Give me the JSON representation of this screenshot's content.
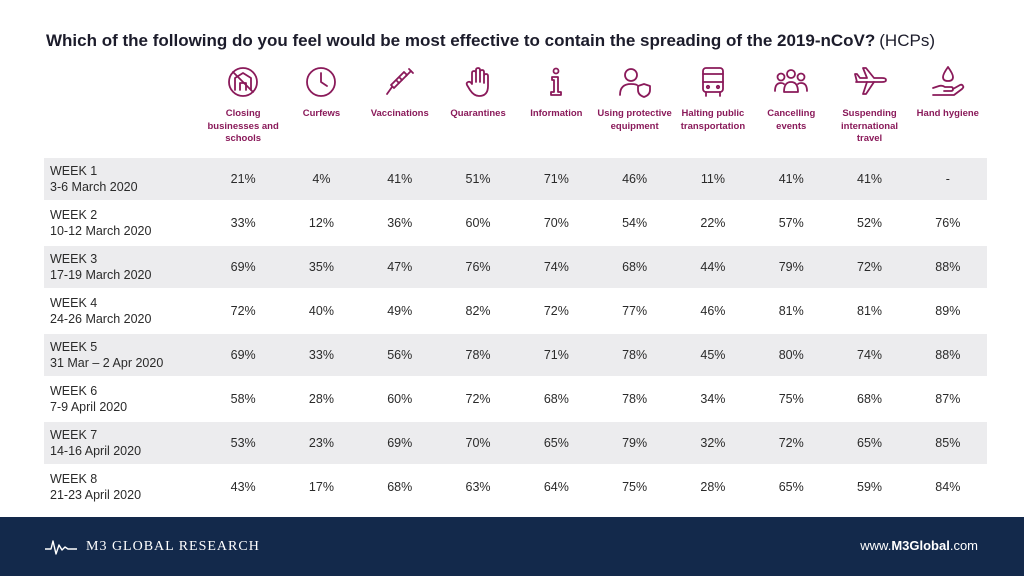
{
  "title": {
    "main": "Which of the following do you feel would be most effective to contain the spreading of the 2019-nCoV?",
    "sub": "(HCPs)"
  },
  "columns": [
    {
      "label": "Closing businesses and schools",
      "icon": "closed-building-icon"
    },
    {
      "label": "Curfews",
      "icon": "clock-icon"
    },
    {
      "label": "Vaccinations",
      "icon": "syringe-icon"
    },
    {
      "label": "Quarantines",
      "icon": "hand-stop-icon"
    },
    {
      "label": "Information",
      "icon": "info-icon"
    },
    {
      "label": "Using protective equipment",
      "icon": "person-shield-icon"
    },
    {
      "label": "Halting public transportation",
      "icon": "bus-icon"
    },
    {
      "label": "Cancelling events",
      "icon": "group-icon"
    },
    {
      "label": "Suspending international travel",
      "icon": "airplane-icon"
    },
    {
      "label": "Hand hygiene",
      "icon": "hand-drop-icon"
    }
  ],
  "rows": [
    {
      "week": "WEEK 1",
      "dates": "3-6 March 2020",
      "values": [
        "21%",
        "4%",
        "41%",
        "51%",
        "71%",
        "46%",
        "11%",
        "41%",
        "41%",
        "-"
      ]
    },
    {
      "week": "WEEK 2",
      "dates": "10-12 March 2020",
      "values": [
        "33%",
        "12%",
        "36%",
        "60%",
        "70%",
        "54%",
        "22%",
        "57%",
        "52%",
        "76%"
      ]
    },
    {
      "week": "WEEK 3",
      "dates": "17-19 March 2020",
      "values": [
        "69%",
        "35%",
        "47%",
        "76%",
        "74%",
        "68%",
        "44%",
        "79%",
        "72%",
        "88%"
      ]
    },
    {
      "week": "WEEK 4",
      "dates": "24-26 March 2020",
      "values": [
        "72%",
        "40%",
        "49%",
        "82%",
        "72%",
        "77%",
        "46%",
        "81%",
        "81%",
        "89%"
      ]
    },
    {
      "week": "WEEK 5",
      "dates": "31 Mar – 2 Apr 2020",
      "values": [
        "69%",
        "33%",
        "56%",
        "78%",
        "71%",
        "78%",
        "45%",
        "80%",
        "74%",
        "88%"
      ]
    },
    {
      "week": "WEEK 6",
      "dates": "7-9 April 2020",
      "values": [
        "58%",
        "28%",
        "60%",
        "72%",
        "68%",
        "78%",
        "34%",
        "75%",
        "68%",
        "87%"
      ]
    },
    {
      "week": "WEEK 7",
      "dates": "14-16 April 2020",
      "values": [
        "53%",
        "23%",
        "69%",
        "70%",
        "65%",
        "79%",
        "32%",
        "72%",
        "65%",
        "85%"
      ]
    },
    {
      "week": "WEEK 8",
      "dates": "21-23 April 2020",
      "values": [
        "43%",
        "17%",
        "68%",
        "63%",
        "64%",
        "75%",
        "28%",
        "65%",
        "59%",
        "84%"
      ]
    }
  ],
  "chart_data": {
    "type": "table",
    "title": "Which of the following do you feel would be most effective to contain the spreading of the 2019-nCoV? (HCPs)",
    "columns": [
      "Closing businesses and schools",
      "Curfews",
      "Vaccinations",
      "Quarantines",
      "Information",
      "Using protective equipment",
      "Halting public transportation",
      "Cancelling events",
      "Suspending international travel",
      "Hand hygiene"
    ],
    "rows": [
      "WEEK 1 3-6 March 2020",
      "WEEK 2 10-12 March 2020",
      "WEEK 3 17-19 March 2020",
      "WEEK 4 24-26 March 2020",
      "WEEK 5 31 Mar – 2 Apr 2020",
      "WEEK 6 7-9 April 2020",
      "WEEK 7 14-16 April 2020",
      "WEEK 8 21-23 April 2020"
    ],
    "values": [
      [
        21,
        4,
        41,
        51,
        71,
        46,
        11,
        41,
        41,
        null
      ],
      [
        33,
        12,
        36,
        60,
        70,
        54,
        22,
        57,
        52,
        76
      ],
      [
        69,
        35,
        47,
        76,
        74,
        68,
        44,
        79,
        72,
        88
      ],
      [
        72,
        40,
        49,
        82,
        72,
        77,
        46,
        81,
        81,
        89
      ],
      [
        69,
        33,
        56,
        78,
        71,
        78,
        45,
        80,
        74,
        88
      ],
      [
        58,
        28,
        60,
        72,
        68,
        78,
        34,
        75,
        68,
        87
      ],
      [
        53,
        23,
        69,
        70,
        65,
        79,
        32,
        72,
        65,
        85
      ],
      [
        43,
        17,
        68,
        63,
        64,
        75,
        28,
        65,
        59,
        84
      ]
    ]
  },
  "colors": {
    "accent": "#8a1a5a",
    "footer": "#13294b",
    "stripe": "#ececee"
  },
  "footer": {
    "brand": "M3 GLOBAL RESEARCH",
    "url_prefix": "www.",
    "url_bold": "M3Global",
    "url_suffix": ".com"
  }
}
